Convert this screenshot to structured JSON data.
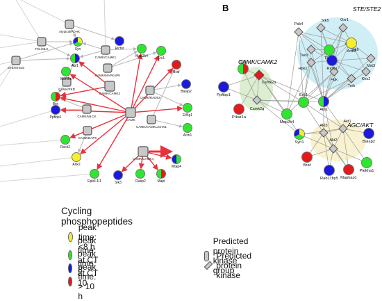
{
  "panel_label": "B",
  "colors": {
    "yellow": "#f5f02a",
    "green": "#2fe62f",
    "blue": "#1a1adc",
    "red": "#e41a1a",
    "gray": "#c8c8c8"
  },
  "group_labels": {
    "ste": "STE/STE2",
    "camk": "CAMK/CAMK2",
    "agc": "AGC/AKT"
  },
  "panel_a": {
    "groups": [
      {
        "id": "atypical",
        "label": "Atypical/PDHK"
      },
      {
        "id": "tkl",
        "label": "TKL/MLK"
      },
      {
        "id": "ste20",
        "label": "STE/STE20"
      },
      {
        "id": "camk1",
        "label": "CAMK/CAMK1"
      },
      {
        "id": "camkmapk",
        "label": "CAMK/MAPKAPK"
      },
      {
        "id": "camkpkd",
        "label": "CAMK/PKD"
      },
      {
        "id": "camk2",
        "label": "CAMK/CAMK2"
      },
      {
        "id": "camkrad53",
        "label": "CAMK/RAD53"
      },
      {
        "id": "camkmlck",
        "label": "CAMK/MLCK"
      },
      {
        "id": "camk",
        "label": "CAMK"
      },
      {
        "id": "camkchk1",
        "label": "CAMK/CAMKL/CHK1"
      },
      {
        "id": "camkdapk",
        "label": "CAMK/DAPK"
      },
      {
        "id": "camkcamk",
        "label": "CAMK/CAMK4"
      }
    ],
    "substrates": [
      {
        "id": "syn",
        "label": "Syn",
        "colors": [
          "yellow",
          "green",
          "blue"
        ]
      },
      {
        "id": "rictor",
        "label": "Rictor",
        "colors": [
          "blue"
        ]
      },
      {
        "id": "map2k4",
        "label": "Map2k4",
        "colors": [
          "green"
        ]
      },
      {
        "id": "erc1",
        "label": "Erc1",
        "colors": [
          "green"
        ]
      },
      {
        "id": "abl1",
        "label": "Abl1",
        "colors": [
          "blue",
          "green"
        ]
      },
      {
        "id": "marcks",
        "label": "Marcks",
        "colors": [
          "green"
        ]
      },
      {
        "id": "bsn",
        "label": "Bsn",
        "colors": [
          "red",
          "green"
        ]
      },
      {
        "id": "braf",
        "label": "Braf",
        "colors": [
          "red"
        ]
      },
      {
        "id": "baiap2",
        "label": "Baiap2",
        "colors": [
          "blue"
        ]
      },
      {
        "id": "ppfibp1",
        "label": "Ppfibp1",
        "colors": [
          "blue"
        ]
      },
      {
        "id": "eif4g1",
        "label": "Eif4g1",
        "colors": [
          "green"
        ]
      },
      {
        "id": "acin1",
        "label": "Acin1",
        "colors": [
          "green"
        ]
      },
      {
        "id": "rock2",
        "label": "Rock2",
        "colors": [
          "green"
        ]
      },
      {
        "id": "ank2",
        "label": "Ank2",
        "colors": [
          "yellow"
        ]
      },
      {
        "id": "epb41l1",
        "label": "Epb4.1l1",
        "colors": [
          "green"
        ]
      },
      {
        "id": "sik3",
        "label": "Sik3",
        "colors": [
          "blue"
        ]
      },
      {
        "id": "clasp2",
        "label": "Clasp2",
        "colors": [
          "green"
        ]
      },
      {
        "id": "mapt",
        "label": "Mapt",
        "colors": [
          "red",
          "green"
        ]
      },
      {
        "id": "mtap4",
        "label": "Mtap4",
        "colors": [
          "green",
          "blue"
        ]
      }
    ]
  },
  "panel_b": {
    "kinases": [
      {
        "id": "pak4",
        "label": "Pak4"
      },
      {
        "id": "stk5",
        "label": "Stk5"
      },
      {
        "id": "oxr1",
        "label": "Oxr1"
      },
      {
        "id": "stk6",
        "label": "Stk6"
      },
      {
        "id": "tao3",
        "label": "Tao3"
      },
      {
        "id": "mst3",
        "label": "Mst3"
      },
      {
        "id": "hpk1",
        "label": "Hpk1"
      },
      {
        "id": "hgk",
        "label": "Hgk"
      },
      {
        "id": "tnik",
        "label": "Tnik"
      },
      {
        "id": "khs2",
        "label": "Khs2"
      },
      {
        "id": "camk2a",
        "label": "Camk2a"
      },
      {
        "id": "camk2g",
        "label": "Camk2g"
      },
      {
        "id": "akt3",
        "label": "Akt3"
      },
      {
        "id": "akt1",
        "label": "Akt1"
      },
      {
        "id": "akt2",
        "label": "Akt2"
      }
    ],
    "substrates": [
      {
        "id": "dbnl",
        "label": "Dbnl",
        "colors": [
          "green"
        ]
      },
      {
        "id": "ank2",
        "label": "Ank2",
        "colors": [
          "yellow"
        ]
      },
      {
        "id": "rictor",
        "label": "Rictor",
        "colors": [
          "blue"
        ]
      },
      {
        "id": "bsn",
        "label": "Bsn",
        "colors": [
          "red",
          "green"
        ]
      },
      {
        "id": "ppfibp1",
        "label": "Ppfibp1",
        "colors": [
          "blue"
        ]
      },
      {
        "id": "prkar1a",
        "label": "Prkar1a",
        "colors": [
          "red"
        ]
      },
      {
        "id": "erc1",
        "label": "Erc1",
        "colors": [
          "green"
        ]
      },
      {
        "id": "abl1",
        "label": "Abl1",
        "colors": [
          "blue",
          "green"
        ]
      },
      {
        "id": "map2k4",
        "label": "Map2k4",
        "colors": [
          "green"
        ]
      },
      {
        "id": "syn1",
        "label": "Syn1",
        "colors": [
          "yellow",
          "green",
          "blue"
        ]
      },
      {
        "id": "baiap2",
        "label": "Baiap2",
        "colors": [
          "blue"
        ]
      },
      {
        "id": "braf",
        "label": "Braf",
        "colors": [
          "red"
        ]
      },
      {
        "id": "rab11fip5",
        "label": "Rab11fip5",
        "colors": [
          "blue"
        ]
      },
      {
        "id": "mapkap1",
        "label": "Mapkap1",
        "colors": [
          "red"
        ]
      },
      {
        "id": "plekha1",
        "label": "Plekha1",
        "colors": [
          "green"
        ]
      }
    ]
  },
  "legend": {
    "title": "Cycling phosphopeptides",
    "items": [
      {
        "label": "peak time: <8 h",
        "color": "yellow"
      },
      {
        "label": "peak time:  at CT 8",
        "color": "green"
      },
      {
        "label": "peak time:  at CT 10",
        "color": "blue"
      },
      {
        "label": "peak time:  > 10 h",
        "color": "red"
      }
    ],
    "group_symbol": "Predicted protein kinase group",
    "kinase_symbol": "Predicted protein kinase"
  }
}
